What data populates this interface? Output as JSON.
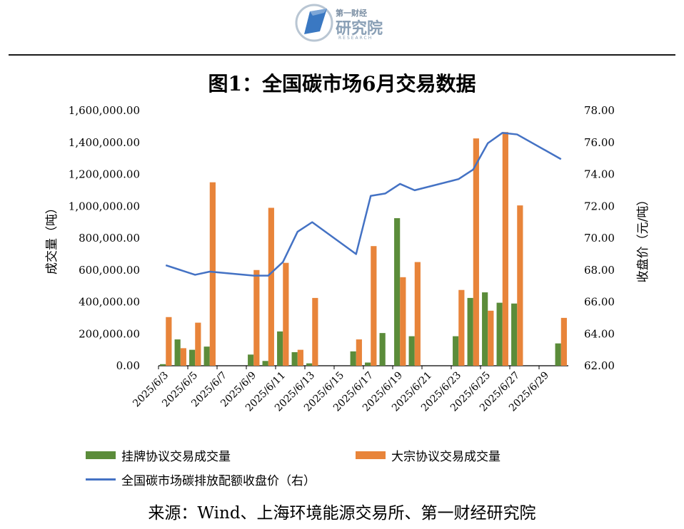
{
  "header": {
    "logo_top": "第一财经",
    "logo_name": "研究院",
    "logo_sub": "RESEARCH"
  },
  "colors": {
    "green": "#5B8C3A",
    "orange": "#E8843A",
    "line": "#4472C4",
    "logo_blue": "#3a78c2"
  },
  "source": "来源：Wind、上海环境能源交易所、第一财经研究院",
  "chart_data": {
    "type": "bar",
    "title": "图1：全国碳市场6月交易数据",
    "ylabel": "成交量（吨）",
    "y2label": "收盘价（元/吨）",
    "ylim": [
      0,
      1600000
    ],
    "y2lim": [
      62,
      78
    ],
    "yticks": [
      "0.00",
      "200,000.00",
      "400,000.00",
      "600,000.00",
      "800,000.00",
      "1,000,000.00",
      "1,200,000.00",
      "1,400,000.00",
      "1,600,000.00"
    ],
    "y2ticks": [
      "62.00",
      "64.00",
      "66.00",
      "68.00",
      "70.00",
      "72.00",
      "74.00",
      "76.00",
      "78.00"
    ],
    "xtick_labels": [
      "2025/6/3",
      "2025/6/5",
      "2025/6/7",
      "2025/6/9",
      "2025/6/11",
      "2025/6/13",
      "2025/6/15",
      "2025/6/17",
      "2025/6/19",
      "2025/6/21",
      "2025/6/23",
      "2025/6/25",
      "2025/6/27",
      "2025/6/29"
    ],
    "categories": [
      "2025/6/3",
      "2025/6/4",
      "2025/6/5",
      "2025/6/6",
      "2025/6/7",
      "2025/6/8",
      "2025/6/9",
      "2025/6/10",
      "2025/6/11",
      "2025/6/12",
      "2025/6/13",
      "2025/6/14",
      "2025/6/15",
      "2025/6/16",
      "2025/6/17",
      "2025/6/18",
      "2025/6/19",
      "2025/6/20",
      "2025/6/21",
      "2025/6/22",
      "2025/6/23",
      "2025/6/24",
      "2025/6/25",
      "2025/6/26",
      "2025/6/27",
      "2025/6/28",
      "2025/6/29",
      "2025/6/30"
    ],
    "series": [
      {
        "name": "挂牌协议交易成交量",
        "type": "bar",
        "axis": "left",
        "values": [
          10000,
          165000,
          100000,
          120000,
          null,
          null,
          70000,
          30000,
          215000,
          85000,
          15000,
          null,
          null,
          90000,
          20000,
          205000,
          925000,
          185000,
          null,
          null,
          185000,
          425000,
          460000,
          395000,
          390000,
          null,
          null,
          140000
        ]
      },
      {
        "name": "大宗协议交易成交量",
        "type": "bar",
        "axis": "left",
        "values": [
          305000,
          110000,
          270000,
          1150000,
          null,
          null,
          600000,
          990000,
          645000,
          100000,
          425000,
          null,
          null,
          165000,
          750000,
          null,
          555000,
          650000,
          null,
          null,
          475000,
          1425000,
          345000,
          1465000,
          1005000,
          null,
          null,
          300000
        ]
      },
      {
        "name": "全国碳市场碳排放配额收盘价（右）",
        "type": "line",
        "axis": "right",
        "values": [
          68.3,
          68.0,
          67.7,
          67.9,
          null,
          null,
          67.65,
          67.65,
          68.5,
          70.4,
          71.0,
          null,
          null,
          69.0,
          72.65,
          72.8,
          73.4,
          73.0,
          null,
          null,
          73.7,
          74.3,
          75.95,
          76.6,
          76.5,
          null,
          null,
          74.95
        ]
      }
    ],
    "legend_position": "bottom",
    "grid": false
  }
}
